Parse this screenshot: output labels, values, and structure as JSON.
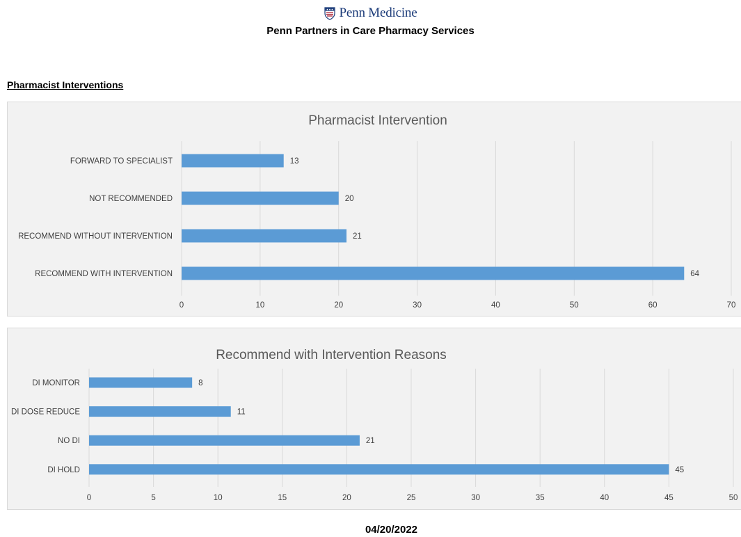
{
  "header": {
    "logo_text": "Penn Medicine",
    "subtitle": "Penn Partners in Care Pharmacy Services"
  },
  "section": {
    "heading": "Pharmacist Interventions"
  },
  "colors": {
    "bar": "#5b9bd5",
    "grid": "#d9d9d9",
    "panel": "#f2f2f2",
    "logo": "#1a3a78",
    "shield_red": "#a6192e"
  },
  "chart_data": [
    {
      "type": "bar",
      "orientation": "horizontal",
      "title": "Pharmacist Intervention",
      "categories": [
        "FORWARD TO SPECIALIST",
        "NOT RECOMMENDED",
        "RECOMMEND WITHOUT INTERVENTION",
        "RECOMMEND WITH INTERVENTION"
      ],
      "values": [
        13,
        20,
        21,
        64
      ],
      "xlim": [
        0,
        70
      ],
      "xticks": [
        0,
        10,
        20,
        30,
        40,
        50,
        60,
        70
      ],
      "grid": true,
      "data_labels": true
    },
    {
      "type": "bar",
      "orientation": "horizontal",
      "title": "Recommend with Intervention Reasons",
      "categories": [
        "DI MONITOR",
        "DI DOSE REDUCE",
        "NO DI",
        "DI HOLD"
      ],
      "values": [
        8,
        11,
        21,
        45
      ],
      "xlim": [
        0,
        50
      ],
      "xticks": [
        0,
        5,
        10,
        15,
        20,
        25,
        30,
        35,
        40,
        45,
        50
      ],
      "grid": true,
      "data_labels": true
    }
  ],
  "footer": {
    "date": "04/20/2022"
  }
}
